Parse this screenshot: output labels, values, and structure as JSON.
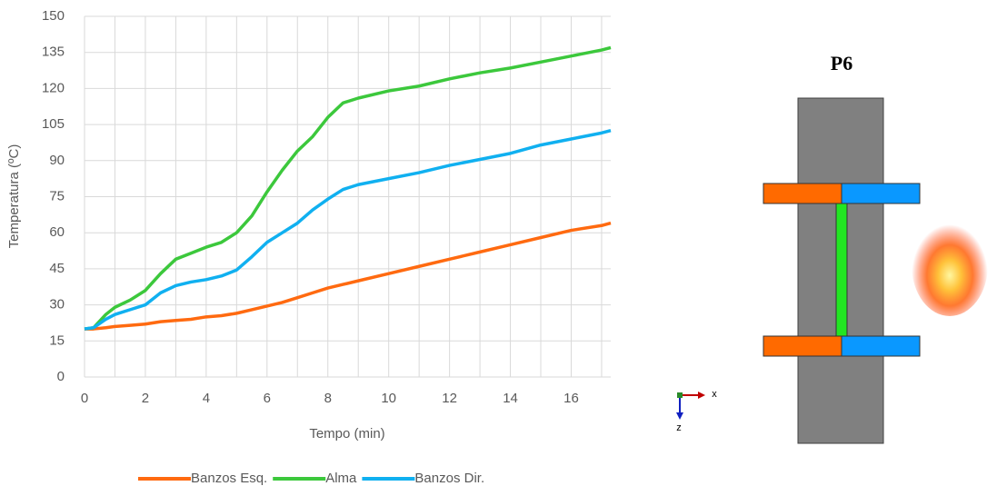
{
  "chart_data": {
    "type": "line",
    "x_label": "Tempo (min)",
    "y_label": "Temperatura (ºC)",
    "x": [
      0,
      0.3,
      0.7,
      1,
      1.5,
      2,
      2.5,
      3,
      3.5,
      4,
      4.5,
      5,
      5.5,
      6,
      6.5,
      7,
      7.5,
      8,
      8.5,
      9,
      10,
      11,
      12,
      13,
      14,
      15,
      16,
      17,
      17.3
    ],
    "series": [
      {
        "name": "Banzos Esq.",
        "color": "#ff6a10",
        "values": [
          20,
          20,
          20.5,
          21,
          21.5,
          22,
          23,
          23.5,
          24,
          25,
          25.5,
          26.5,
          28,
          29.5,
          31,
          33,
          35,
          37,
          38.5,
          40,
          43,
          46,
          49,
          52,
          55,
          58,
          61,
          63,
          64
        ]
      },
      {
        "name": "Alma",
        "color": "#3cc83c",
        "values": [
          20,
          20.5,
          26,
          29,
          32,
          36,
          43,
          49,
          51.5,
          54,
          56,
          60,
          67,
          77,
          86,
          94,
          100,
          108,
          114,
          116,
          119,
          121,
          124,
          126.5,
          128.5,
          131,
          133.5,
          136,
          137
        ]
      },
      {
        "name": "Banzos Dir.",
        "color": "#10b0f0",
        "values": [
          20,
          20.5,
          24,
          26,
          28,
          30,
          35,
          38,
          39.5,
          40.5,
          42,
          44.5,
          50,
          56,
          60,
          64,
          69.5,
          74,
          78,
          80,
          82.5,
          85,
          88,
          90.5,
          93,
          96.5,
          99,
          101.5,
          102.5
        ]
      }
    ],
    "xlim": [
      0,
      17.3
    ],
    "xticks": [
      0,
      2,
      4,
      6,
      8,
      10,
      12,
      14,
      16
    ],
    "x_minor_ticks": [
      1,
      3,
      5,
      7,
      9,
      11,
      13,
      15,
      17
    ],
    "ylim": [
      0,
      150
    ],
    "yticks": [
      0,
      15,
      30,
      45,
      60,
      75,
      90,
      105,
      120,
      135,
      150
    ],
    "grid": true,
    "legend": "bottom"
  },
  "diagram": {
    "title": "P6",
    "axis_x": "x",
    "axis_z": "z"
  }
}
